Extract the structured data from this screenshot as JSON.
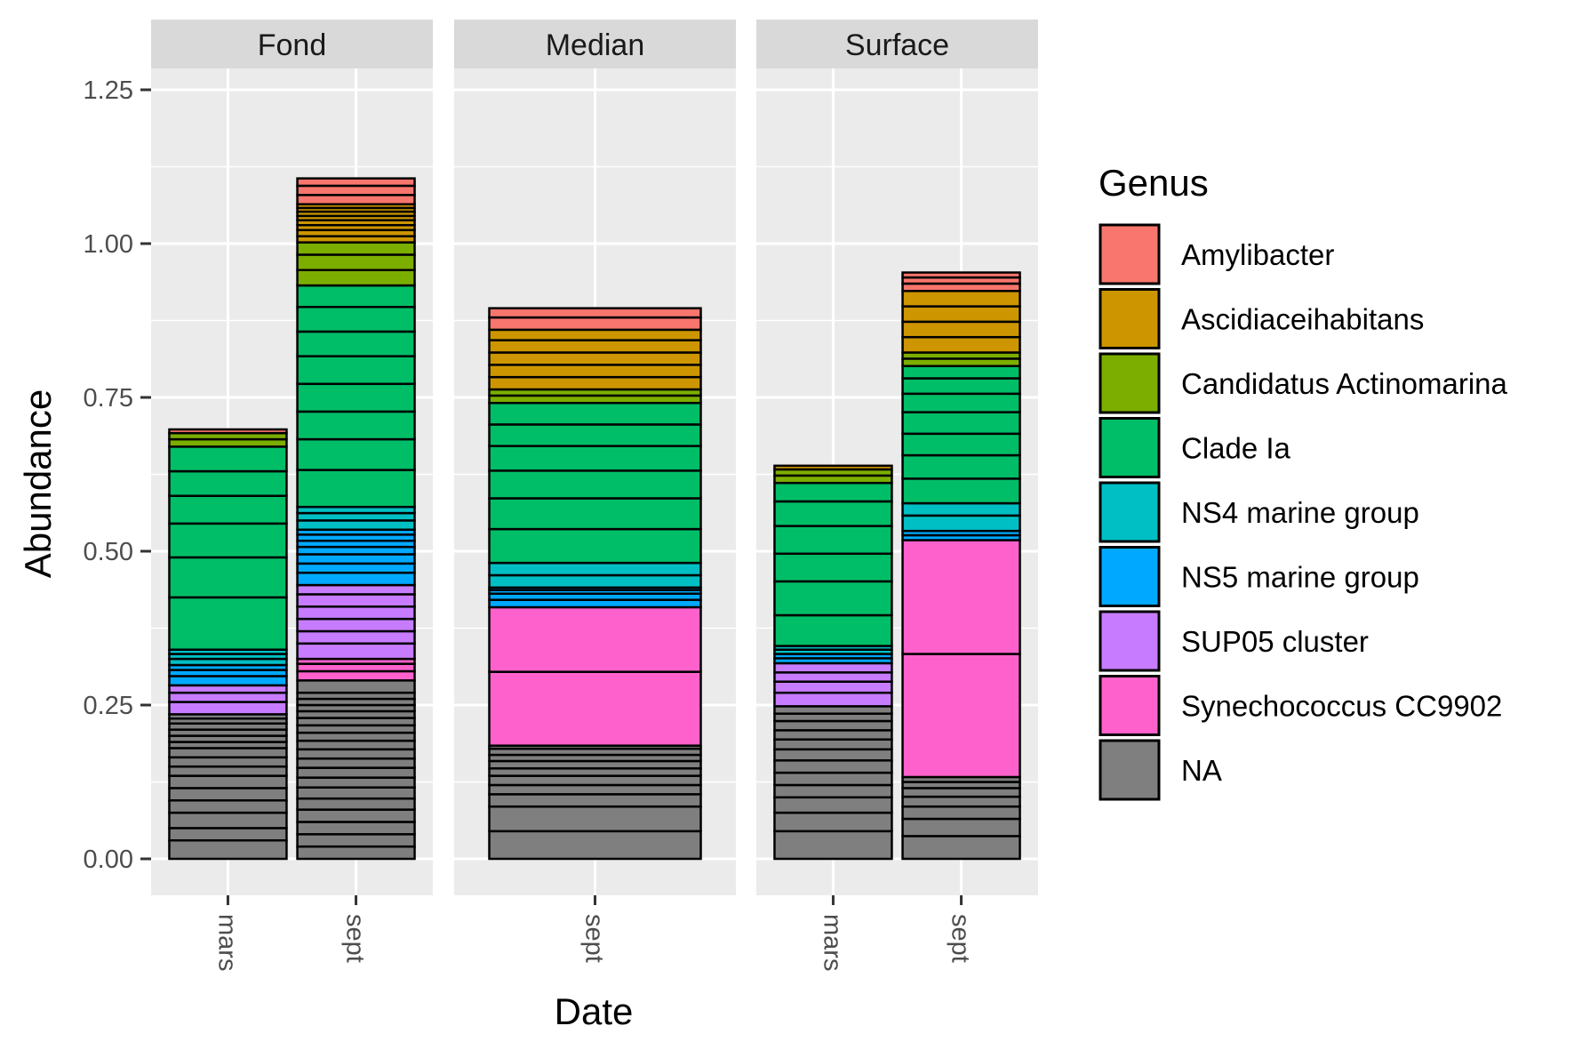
{
  "chart_data": {
    "type": "bar",
    "stacked": true,
    "xlabel": "Date",
    "ylabel": "Abundance",
    "ylim": [
      0,
      1.32
    ],
    "yticks": [
      "0.00",
      "0.25",
      "0.50",
      "0.75",
      "1.00",
      "1.25"
    ],
    "grid": true,
    "legend_position": "right",
    "legend": {
      "title": "Genus",
      "entries": [
        {
          "key": "Amylibacter",
          "label": "Amylibacter",
          "color": "#F8766D"
        },
        {
          "key": "Ascidiaceihabitans",
          "label": "Ascidiaceihabitans",
          "color": "#CD9600"
        },
        {
          "key": "Candidatus Actinomarina",
          "label": "Candidatus Actinomarina",
          "color": "#7CAE00"
        },
        {
          "key": "Clade Ia",
          "label": "Clade Ia",
          "color": "#00BE67"
        },
        {
          "key": "NS4 marine group",
          "label": "NS4 marine group",
          "color": "#00BFC4"
        },
        {
          "key": "NS5 marine group",
          "label": "NS5 marine group",
          "color": "#00A9FF"
        },
        {
          "key": "SUP05 cluster",
          "label": "SUP05 cluster",
          "color": "#C77CFF"
        },
        {
          "key": "Synechococcus CC9902",
          "label": "Synechococcus CC9902",
          "color": "#FF61CC"
        },
        {
          "key": "NA",
          "label": "NA",
          "color": "#7F7F7F"
        }
      ]
    },
    "panels": [
      {
        "strip": "Fond",
        "categories": [
          "mars",
          "sept"
        ],
        "bars": [
          {
            "category": "mars",
            "segments": [
              [
                "NA",
                [
                  0.03,
                  0.02,
                  0.025,
                  0.02,
                  0.02,
                  0.02,
                  0.015,
                  0.015,
                  0.015,
                  0.01,
                  0.01,
                  0.01,
                  0.01,
                  0.008,
                  0.007
                ]
              ],
              [
                "SUP05 cluster",
                [
                  0.02,
                  0.015,
                  0.012
                ]
              ],
              [
                "NS5 marine group",
                [
                  0.015,
                  0.01,
                  0.008
                ]
              ],
              [
                "NS4 marine group",
                [
                  0.01,
                  0.008,
                  0.007
                ]
              ],
              [
                "Clade Ia",
                [
                  0.085,
                  0.065,
                  0.055,
                  0.045,
                  0.04,
                  0.04
                ]
              ],
              [
                "Candidatus Actinomarina",
                [
                  0.012,
                  0.01
                ]
              ],
              [
                "Amylibacter",
                [
                  0.006
                ]
              ]
            ]
          },
          {
            "category": "sept",
            "segments": [
              [
                "NA",
                [
                  0.02,
                  0.02,
                  0.02,
                  0.02,
                  0.018,
                  0.018,
                  0.016,
                  0.016,
                  0.015,
                  0.015,
                  0.014,
                  0.013,
                  0.012,
                  0.012,
                  0.011,
                  0.01,
                  0.01,
                  0.01,
                  0.02
                ]
              ],
              [
                "Synechococcus CC9902",
                [
                  0.015,
                  0.012,
                  0.008
                ]
              ],
              [
                "SUP05 cluster",
                [
                  0.025,
                  0.02,
                  0.02,
                  0.02,
                  0.02,
                  0.015
                ]
              ],
              [
                "NS5 marine group",
                [
                  0.02,
                  0.015,
                  0.015,
                  0.012,
                  0.01,
                  0.01,
                  0.008
                ]
              ],
              [
                "NS4 marine group",
                [
                  0.015,
                  0.012,
                  0.01
                ]
              ],
              [
                "Clade Ia",
                [
                  0.06,
                  0.05,
                  0.045,
                  0.045,
                  0.045,
                  0.04,
                  0.04,
                  0.035
                ]
              ],
              [
                "Candidatus Actinomarina",
                [
                  0.025,
                  0.025,
                  0.02
                ]
              ],
              [
                "Ascidiaceihabitans",
                [
                  0.01,
                  0.01,
                  0.008,
                  0.008,
                  0.007,
                  0.007,
                  0.006,
                  0.006
                ]
              ],
              [
                "Amylibacter",
                [
                  0.015,
                  0.015,
                  0.012
                ]
              ]
            ]
          }
        ]
      },
      {
        "strip": "Median",
        "categories": [
          "sept"
        ],
        "bars": [
          {
            "category": "sept",
            "segments": [
              [
                "NA",
                [
                  0.045,
                  0.04,
                  0.02,
                  0.015,
                  0.015,
                  0.012,
                  0.012,
                  0.01,
                  0.01,
                  0.005
                ]
              ],
              [
                "Synechococcus CC9902",
                [
                  0.12,
                  0.105
                ]
              ],
              [
                "NS5 marine group",
                [
                  0.012,
                  0.01,
                  0.006,
                  0.004
                ]
              ],
              [
                "NS4 marine group",
                [
                  0.02,
                  0.02
                ]
              ],
              [
                "Clade Ia",
                [
                  0.055,
                  0.05,
                  0.045,
                  0.04,
                  0.035,
                  0.035
                ]
              ],
              [
                "Candidatus Actinomarina",
                [
                  0.012,
                  0.01
                ]
              ],
              [
                "Ascidiaceihabitans",
                [
                  0.02,
                  0.02,
                  0.02,
                  0.02,
                  0.017
                ]
              ],
              [
                "Amylibacter",
                [
                  0.02,
                  0.015
                ]
              ]
            ]
          }
        ]
      },
      {
        "strip": "Surface",
        "categories": [
          "mars",
          "sept"
        ],
        "bars": [
          {
            "category": "mars",
            "segments": [
              [
                "NA",
                [
                  0.045,
                  0.03,
                  0.025,
                  0.02,
                  0.02,
                  0.02,
                  0.018,
                  0.016,
                  0.015,
                  0.015,
                  0.012,
                  0.012
                ]
              ],
              [
                "SUP05 cluster",
                [
                  0.022,
                  0.018,
                  0.015,
                  0.015
                ]
              ],
              [
                "NS5 marine group",
                [
                  0.008,
                  0.007
                ]
              ],
              [
                "NS4 marine group",
                [
                  0.007,
                  0.006
                ]
              ],
              [
                "Clade Ia",
                [
                  0.05,
                  0.055,
                  0.045,
                  0.045,
                  0.04,
                  0.03
                ]
              ],
              [
                "Candidatus Actinomarina",
                [
                  0.012,
                  0.01
                ]
              ],
              [
                "Ascidiaceihabitans",
                [
                  0.006
                ]
              ]
            ]
          },
          {
            "category": "sept",
            "segments": [
              [
                "NA",
                [
                  0.037,
                  0.028,
                  0.02,
                  0.016,
                  0.014,
                  0.01,
                  0.008
                ]
              ],
              [
                "Synechococcus CC9902",
                [
                  0.2,
                  0.185
                ]
              ],
              [
                "NS5 marine group",
                [
                  0.008,
                  0.007
                ]
              ],
              [
                "NS4 marine group",
                [
                  0.025,
                  0.02
                ]
              ],
              [
                "Clade Ia",
                [
                  0.04,
                  0.038,
                  0.035,
                  0.035,
                  0.03,
                  0.025,
                  0.02
                ]
              ],
              [
                "Candidatus Actinomarina",
                [
                  0.012,
                  0.01
                ]
              ],
              [
                "Ascidiaceihabitans",
                [
                  0.025,
                  0.025,
                  0.025,
                  0.025
                ]
              ],
              [
                "Amylibacter",
                [
                  0.012,
                  0.01,
                  0.008
                ]
              ]
            ]
          }
        ]
      }
    ]
  }
}
